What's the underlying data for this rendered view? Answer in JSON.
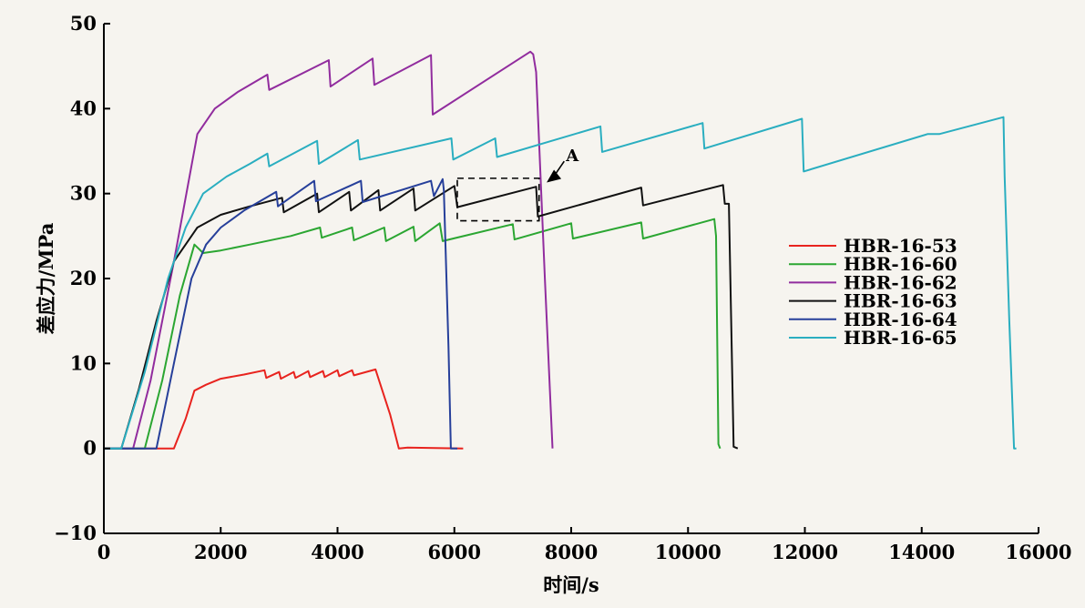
{
  "chart_data": {
    "type": "line",
    "title": "",
    "xlabel": "时间/s",
    "ylabel": "差应力/MPa",
    "xlim": [
      0,
      16000
    ],
    "ylim": [
      -10,
      50
    ],
    "xticks": [
      0,
      2000,
      4000,
      6000,
      8000,
      10000,
      12000,
      14000,
      16000
    ],
    "yticks": [
      -10,
      0,
      10,
      20,
      30,
      40,
      50
    ],
    "grid": false,
    "legend_position": "right",
    "annotation": {
      "label": "A"
    },
    "series": [
      {
        "name": "HBR-16-53",
        "color": "#e8231e",
        "points": [
          [
            0,
            0
          ],
          [
            1200,
            0
          ],
          [
            1400,
            3.5
          ],
          [
            1550,
            6.8
          ],
          [
            1750,
            7.5
          ],
          [
            2000,
            8.2
          ],
          [
            2400,
            8.7
          ],
          [
            2750,
            9.2
          ],
          [
            2780,
            8.3
          ],
          [
            3000,
            9.0
          ],
          [
            3030,
            8.2
          ],
          [
            3250,
            9.0
          ],
          [
            3280,
            8.3
          ],
          [
            3500,
            9.1
          ],
          [
            3530,
            8.4
          ],
          [
            3750,
            9.1
          ],
          [
            3780,
            8.4
          ],
          [
            4000,
            9.2
          ],
          [
            4030,
            8.5
          ],
          [
            4250,
            9.2
          ],
          [
            4280,
            8.6
          ],
          [
            4650,
            9.3
          ],
          [
            4900,
            4.0
          ],
          [
            5050,
            0
          ],
          [
            5200,
            0.1
          ],
          [
            6150,
            0
          ]
        ]
      },
      {
        "name": "HBR-16-60",
        "color": "#2ba632",
        "points": [
          [
            0,
            0
          ],
          [
            700,
            0
          ],
          [
            1000,
            8
          ],
          [
            1300,
            18
          ],
          [
            1550,
            24
          ],
          [
            1700,
            23
          ],
          [
            2000,
            23.3
          ],
          [
            2500,
            24
          ],
          [
            3200,
            25
          ],
          [
            3700,
            26
          ],
          [
            3730,
            24.8
          ],
          [
            4250,
            26
          ],
          [
            4280,
            24.5
          ],
          [
            4800,
            26
          ],
          [
            4830,
            24.4
          ],
          [
            5300,
            26.1
          ],
          [
            5330,
            24.4
          ],
          [
            5750,
            26.5
          ],
          [
            5800,
            24.4
          ],
          [
            7000,
            26.4
          ],
          [
            7030,
            24.6
          ],
          [
            8000,
            26.5
          ],
          [
            8030,
            24.7
          ],
          [
            9200,
            26.6
          ],
          [
            9230,
            24.7
          ],
          [
            10450,
            27
          ],
          [
            10480,
            25
          ],
          [
            10520,
            0.5
          ],
          [
            10550,
            0
          ]
        ]
      },
      {
        "name": "HBR-16-62",
        "color": "#912c9e",
        "points": [
          [
            0,
            0
          ],
          [
            500,
            0
          ],
          [
            800,
            8
          ],
          [
            1200,
            22
          ],
          [
            1600,
            37
          ],
          [
            1900,
            40
          ],
          [
            2300,
            42
          ],
          [
            2800,
            44
          ],
          [
            2830,
            42.2
          ],
          [
            3850,
            45.7
          ],
          [
            3880,
            42.6
          ],
          [
            4600,
            45.9
          ],
          [
            4630,
            42.8
          ],
          [
            5600,
            46.3
          ],
          [
            5630,
            39.3
          ],
          [
            7300,
            46.7
          ],
          [
            7350,
            46.4
          ],
          [
            7400,
            44.3
          ],
          [
            7550,
            20
          ],
          [
            7680,
            0
          ]
        ]
      },
      {
        "name": "HBR-16-63",
        "color": "#111111",
        "points": [
          [
            0,
            0
          ],
          [
            300,
            0
          ],
          [
            600,
            7
          ],
          [
            900,
            15
          ],
          [
            1200,
            22
          ],
          [
            1600,
            26
          ],
          [
            2000,
            27.5
          ],
          [
            2500,
            28.5
          ],
          [
            3050,
            29.5
          ],
          [
            3080,
            27.8
          ],
          [
            3650,
            30
          ],
          [
            3680,
            27.8
          ],
          [
            4200,
            30.2
          ],
          [
            4230,
            28
          ],
          [
            4700,
            30.4
          ],
          [
            4730,
            28
          ],
          [
            5300,
            30.6
          ],
          [
            5330,
            28
          ],
          [
            6000,
            30.9
          ],
          [
            6050,
            28.4
          ],
          [
            7400,
            30.8
          ],
          [
            7430,
            27.3
          ],
          [
            9200,
            30.7
          ],
          [
            9230,
            28.6
          ],
          [
            10600,
            31
          ],
          [
            10630,
            28.8
          ],
          [
            10700,
            28.8
          ],
          [
            10780,
            0.2
          ],
          [
            10850,
            0
          ]
        ]
      },
      {
        "name": "HBR-16-64",
        "color": "#263f9a",
        "points": [
          [
            0,
            0
          ],
          [
            900,
            0
          ],
          [
            1200,
            10
          ],
          [
            1500,
            20
          ],
          [
            1750,
            24
          ],
          [
            2000,
            26
          ],
          [
            2400,
            28
          ],
          [
            2950,
            30.2
          ],
          [
            2980,
            28.5
          ],
          [
            3600,
            31.5
          ],
          [
            3630,
            29.1
          ],
          [
            4400,
            31.5
          ],
          [
            4430,
            29
          ],
          [
            5600,
            31.5
          ],
          [
            5650,
            29.7
          ],
          [
            5800,
            31.7
          ],
          [
            5820,
            30.4
          ],
          [
            5900,
            12
          ],
          [
            5940,
            0
          ],
          [
            6050,
            0
          ]
        ]
      },
      {
        "name": "HBR-16-65",
        "color": "#2aaec0",
        "points": [
          [
            0,
            0
          ],
          [
            300,
            0
          ],
          [
            700,
            9
          ],
          [
            1100,
            20
          ],
          [
            1400,
            26
          ],
          [
            1700,
            30
          ],
          [
            2100,
            32
          ],
          [
            2500,
            33.5
          ],
          [
            2800,
            34.7
          ],
          [
            2830,
            33.2
          ],
          [
            3650,
            36.2
          ],
          [
            3680,
            33.5
          ],
          [
            4350,
            36.3
          ],
          [
            4380,
            34
          ],
          [
            5950,
            36.5
          ],
          [
            5980,
            34
          ],
          [
            6700,
            36.5
          ],
          [
            6730,
            34.3
          ],
          [
            8500,
            37.9
          ],
          [
            8530,
            34.9
          ],
          [
            10250,
            38.3
          ],
          [
            10280,
            35.3
          ],
          [
            11950,
            38.8
          ],
          [
            11980,
            32.6
          ],
          [
            14100,
            37
          ],
          [
            14300,
            37
          ],
          [
            15400,
            39
          ],
          [
            15420,
            32
          ],
          [
            15500,
            15
          ],
          [
            15580,
            0
          ],
          [
            15620,
            0
          ]
        ]
      }
    ]
  }
}
